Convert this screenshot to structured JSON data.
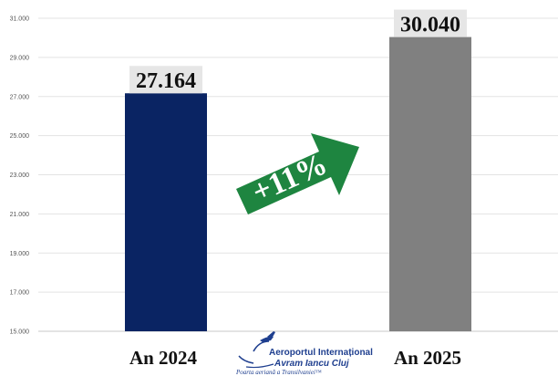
{
  "chart_data": {
    "type": "bar",
    "categories": [
      "An 2024",
      "An 2025"
    ],
    "values": [
      27164,
      30040
    ],
    "value_labels": [
      "27.164",
      "30.040"
    ],
    "colors": [
      "#0a2463",
      "#808080"
    ],
    "ylim": [
      15000,
      31000
    ],
    "yticks": [
      15000,
      17000,
      19000,
      21000,
      23000,
      25000,
      27000,
      29000,
      31000
    ],
    "ytick_labels": [
      "15.000",
      "17.000",
      "19.000",
      "21.000",
      "23.000",
      "25.000",
      "27.000",
      "29.000",
      "31.000"
    ],
    "grid": true,
    "annotation": {
      "text": "+11%",
      "color": "#1e8540"
    }
  },
  "logo": {
    "line1": "Aeroportul Internațional",
    "line2": "Avram Iancu Cluj",
    "tagline": "Poarta aeriană a Transilvaniei™",
    "color": "#1f3f8f",
    "icon": "airplane-icon"
  }
}
